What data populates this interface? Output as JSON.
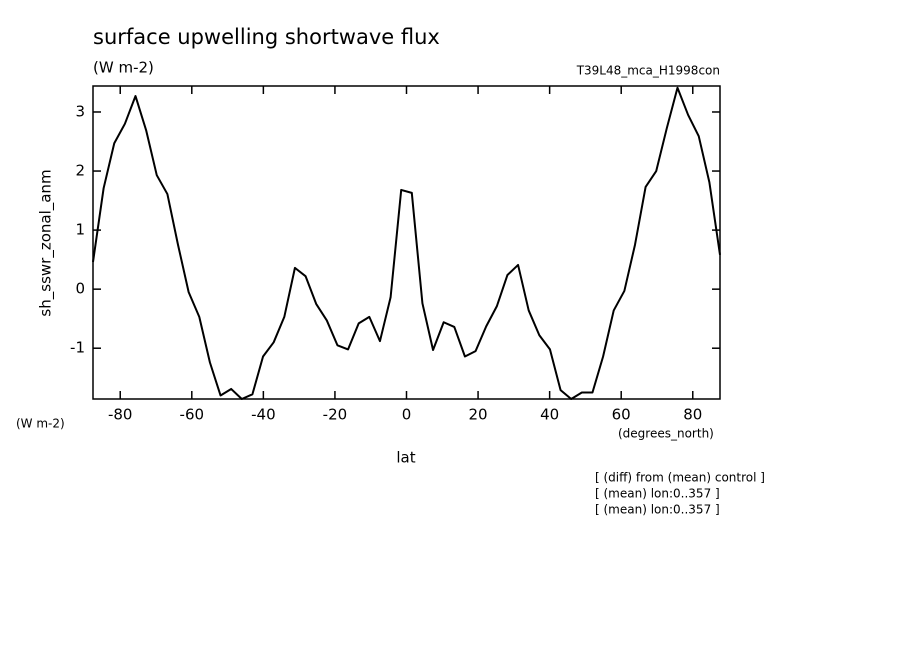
{
  "chart_data": {
    "type": "line",
    "title": "surface upwelling shortwave flux",
    "subtitle": "(W m-2)",
    "experiment": "T39L48_mca_H1998con",
    "ylabel": "sh_sswr_zonal_anm",
    "yunits": "(W m-2)",
    "xlabel": "lat",
    "xunits": "(degrees_north)",
    "notes": [
      "[ (diff) from (mean) control ]",
      "[ (mean) lon:0..357 ]",
      "[ (mean) lon:0..357 ]"
    ],
    "x": [
      -87.61,
      -84.64,
      -81.67,
      -78.7,
      -75.73,
      -72.76,
      -69.79,
      -66.82,
      -63.85,
      -60.88,
      -57.91,
      -54.94,
      -51.97,
      -49.0,
      -46.03,
      -43.06,
      -40.09,
      -37.12,
      -34.15,
      -31.18,
      -28.21,
      -25.24,
      -22.27,
      -19.3,
      -16.33,
      -13.36,
      -10.39,
      -7.42,
      -4.45,
      -1.48,
      1.48,
      4.45,
      7.42,
      10.39,
      13.36,
      16.33,
      19.3,
      22.27,
      25.24,
      28.21,
      31.18,
      34.15,
      37.12,
      40.09,
      43.06,
      46.03,
      49.0,
      51.97,
      54.94,
      57.91,
      60.88,
      63.85,
      66.82,
      69.79,
      72.76,
      75.73,
      78.7,
      81.67,
      84.64,
      87.61
    ],
    "series": [
      {
        "name": "sh_sswr_zonal_anm",
        "color": "#000000",
        "values": [
          0.46,
          1.71,
          2.47,
          2.8,
          3.27,
          2.69,
          1.93,
          1.61,
          0.75,
          -0.05,
          -0.47,
          -1.24,
          -1.8,
          -1.69,
          -1.86,
          -1.78,
          -1.14,
          -0.9,
          -0.47,
          0.36,
          0.22,
          -0.25,
          -0.53,
          -0.95,
          -1.02,
          -0.58,
          -0.47,
          -0.88,
          -0.14,
          1.68,
          1.63,
          -0.24,
          -1.03,
          -0.56,
          -0.64,
          -1.14,
          -1.05,
          -0.63,
          -0.29,
          0.24,
          0.41,
          -0.36,
          -0.78,
          -1.02,
          -1.71,
          -1.86,
          -1.75,
          -1.75,
          -1.14,
          -0.36,
          -0.03,
          0.75,
          1.73,
          2.0,
          2.73,
          3.41,
          2.95,
          2.59,
          1.81,
          0.58
        ]
      }
    ],
    "xlim": [
      -87.61,
      87.61
    ],
    "ylim": [
      -1.86,
      3.44
    ],
    "xticks": [
      -80,
      -60,
      -40,
      -20,
      0,
      20,
      40,
      60,
      80
    ],
    "yticks": [
      -1,
      0,
      1,
      2,
      3
    ]
  }
}
